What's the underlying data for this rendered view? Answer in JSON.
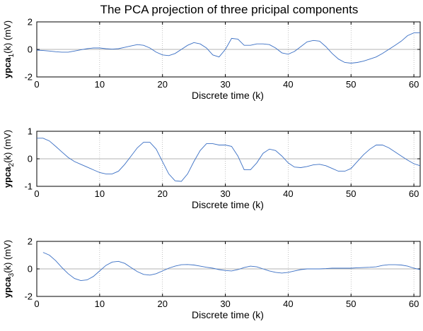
{
  "figure": {
    "title": "The PCA projection of three pricipal components",
    "colors": {
      "line": "#3a6fc4",
      "grid": "#9a9a9a",
      "axes": "#000000"
    }
  },
  "chart_data": [
    {
      "type": "line",
      "xlabel": "Discrete time (k)",
      "ylabel": {
        "strong": "ypca",
        "sub": "1",
        "rest": "(k) (mV)"
      },
      "xlim": [
        0,
        61
      ],
      "ylim": [
        -2,
        2
      ],
      "xticks": [
        0,
        10,
        20,
        30,
        40,
        50,
        60
      ],
      "yticks": [
        -2,
        0,
        2
      ],
      "grid": true,
      "series": [
        {
          "x": [
            0,
            1,
            2,
            3,
            4,
            5,
            6,
            7,
            8,
            9,
            10,
            11,
            12,
            13,
            14,
            15,
            16,
            17,
            18,
            19,
            20,
            21,
            22,
            23,
            24,
            25,
            26,
            27,
            28,
            29,
            30,
            31,
            32,
            33,
            34,
            35,
            36,
            37,
            38,
            39,
            40,
            41,
            42,
            43,
            44,
            45,
            46,
            47,
            48,
            49,
            50,
            51,
            52,
            53,
            54,
            55,
            56,
            57,
            58,
            59,
            60,
            61
          ],
          "y": [
            -0.05,
            -0.08,
            -0.12,
            -0.17,
            -0.2,
            -0.2,
            -0.12,
            -0.03,
            0.05,
            0.1,
            0.1,
            0.05,
            0.02,
            0.05,
            0.15,
            0.25,
            0.35,
            0.3,
            0.1,
            -0.2,
            -0.4,
            -0.45,
            -0.3,
            0.0,
            0.3,
            0.5,
            0.4,
            0.1,
            -0.4,
            -0.55,
            0.0,
            0.8,
            0.75,
            0.3,
            0.3,
            0.4,
            0.4,
            0.35,
            0.1,
            -0.25,
            -0.35,
            -0.15,
            0.2,
            0.55,
            0.65,
            0.6,
            0.2,
            -0.3,
            -0.7,
            -0.95,
            -1.0,
            -0.95,
            -0.85,
            -0.7,
            -0.55,
            -0.3,
            0.0,
            0.3,
            0.6,
            1.0,
            1.2,
            1.2
          ]
        }
      ]
    },
    {
      "type": "line",
      "xlabel": "Discrete time (k)",
      "ylabel": {
        "strong": "ypca",
        "sub": "2",
        "rest": "(k) (mV)"
      },
      "xlim": [
        0,
        61
      ],
      "ylim": [
        -1,
        1
      ],
      "xticks": [
        0,
        10,
        20,
        30,
        40,
        50,
        60
      ],
      "yticks": [
        -1,
        0,
        1
      ],
      "grid": true,
      "series": [
        {
          "x": [
            0,
            1,
            2,
            3,
            4,
            5,
            6,
            7,
            8,
            9,
            10,
            11,
            12,
            13,
            14,
            15,
            16,
            17,
            18,
            19,
            20,
            21,
            22,
            23,
            24,
            25,
            26,
            27,
            28,
            29,
            30,
            31,
            32,
            33,
            34,
            35,
            36,
            37,
            38,
            39,
            40,
            41,
            42,
            43,
            44,
            45,
            46,
            47,
            48,
            49,
            50,
            51,
            52,
            53,
            54,
            55,
            56,
            57,
            58,
            59,
            60,
            61
          ],
          "y": [
            0.75,
            0.75,
            0.65,
            0.45,
            0.25,
            0.05,
            -0.1,
            -0.2,
            -0.3,
            -0.4,
            -0.5,
            -0.55,
            -0.55,
            -0.45,
            -0.2,
            0.1,
            0.4,
            0.6,
            0.6,
            0.35,
            -0.1,
            -0.55,
            -0.8,
            -0.82,
            -0.55,
            -0.1,
            0.3,
            0.55,
            0.55,
            0.5,
            0.5,
            0.45,
            0.1,
            -0.4,
            -0.4,
            -0.15,
            0.2,
            0.35,
            0.3,
            0.1,
            -0.15,
            -0.3,
            -0.32,
            -0.28,
            -0.22,
            -0.2,
            -0.25,
            -0.35,
            -0.45,
            -0.45,
            -0.35,
            -0.1,
            0.15,
            0.35,
            0.5,
            0.5,
            0.4,
            0.25,
            0.1,
            -0.05,
            -0.18,
            -0.25
          ]
        }
      ]
    },
    {
      "type": "line",
      "xlabel": "Discrete time (k)",
      "ylabel": {
        "strong": "ypca",
        "sub": "3",
        "rest": "(k) (mV)"
      },
      "xlim": [
        0,
        61
      ],
      "ylim": [
        -2,
        2
      ],
      "xticks": [
        0,
        10,
        20,
        30,
        40,
        50,
        60
      ],
      "yticks": [
        -2,
        0,
        2
      ],
      "grid": true,
      "series": [
        {
          "x": [
            1,
            2,
            3,
            4,
            5,
            6,
            7,
            8,
            9,
            10,
            11,
            12,
            13,
            14,
            15,
            16,
            17,
            18,
            19,
            20,
            21,
            22,
            23,
            24,
            25,
            26,
            27,
            28,
            29,
            30,
            31,
            32,
            33,
            34,
            35,
            36,
            37,
            38,
            39,
            40,
            41,
            42,
            43,
            44,
            45,
            46,
            47,
            48,
            49,
            50,
            51,
            52,
            53,
            54,
            55,
            56,
            57,
            58,
            59,
            60,
            61
          ],
          "y": [
            1.2,
            1.0,
            0.6,
            0.1,
            -0.35,
            -0.7,
            -0.85,
            -0.8,
            -0.55,
            -0.15,
            0.25,
            0.5,
            0.55,
            0.4,
            0.1,
            -0.2,
            -0.4,
            -0.45,
            -0.35,
            -0.15,
            0.05,
            0.2,
            0.3,
            0.32,
            0.28,
            0.2,
            0.12,
            0.05,
            -0.05,
            -0.12,
            -0.15,
            -0.05,
            0.1,
            0.2,
            0.15,
            0.0,
            -0.15,
            -0.25,
            -0.3,
            -0.25,
            -0.15,
            -0.05,
            0.0,
            0.0,
            0.0,
            0.02,
            0.05,
            0.05,
            0.05,
            0.05,
            0.08,
            0.1,
            0.12,
            0.15,
            0.25,
            0.3,
            0.3,
            0.28,
            0.2,
            0.05,
            -0.05
          ]
        }
      ]
    }
  ]
}
